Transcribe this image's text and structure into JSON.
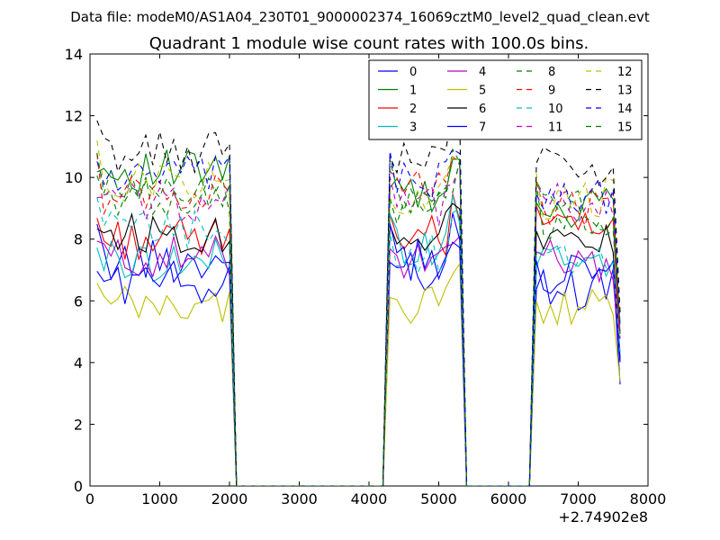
{
  "chart_data": {
    "type": "line",
    "suptitle": "Data file: modeM0/AS1A04_230T01_9000002374_16069cztM0_level2_quad_clean.evt",
    "title": "Quadrant 1 module wise count rates with 100.0s bins.",
    "xlabel": "",
    "ylabel": "",
    "xlim": [
      0,
      8000
    ],
    "ylim": [
      0,
      14
    ],
    "x_ticks": [
      "0",
      "1000",
      "2000",
      "3000",
      "4000",
      "5000",
      "6000",
      "7000",
      "8000"
    ],
    "y_ticks": [
      "0",
      "2",
      "4",
      "6",
      "8",
      "10",
      "12",
      "14"
    ],
    "x_offset_label": "+2.74902e8",
    "legend_position": "top-right",
    "segments": [
      {
        "start": 100,
        "n": 20
      },
      {
        "start": 4300,
        "n": 11
      },
      {
        "start": 6400,
        "n": 13
      }
    ],
    "gap_x": [
      2200,
      4200,
      5500,
      6200,
      7600
    ],
    "series": [
      {
        "name": "0",
        "color": "#0000ff",
        "dash": false,
        "levels": [
          7.3,
          7.0,
          6.4
        ]
      },
      {
        "name": "1",
        "color": "#008000",
        "dash": false,
        "levels": [
          10.2,
          9.4,
          9.0
        ]
      },
      {
        "name": "2",
        "color": "#ff0000",
        "dash": false,
        "levels": [
          8.0,
          8.1,
          8.2
        ]
      },
      {
        "name": "3",
        "color": "#00bfbf",
        "dash": false,
        "levels": [
          7.3,
          7.8,
          7.2
        ]
      },
      {
        "name": "4",
        "color": "#bf00bf",
        "dash": false,
        "levels": [
          7.4,
          7.3,
          7.3
        ]
      },
      {
        "name": "5",
        "color": "#bfbf00",
        "dash": false,
        "levels": [
          5.8,
          5.9,
          5.7
        ]
      },
      {
        "name": "6",
        "color": "#000000",
        "dash": false,
        "levels": [
          8.2,
          8.2,
          7.9
        ]
      },
      {
        "name": "7",
        "color": "#0000ff",
        "dash": false,
        "levels": [
          6.6,
          7.3,
          6.9
        ]
      },
      {
        "name": "8",
        "color": "#008000",
        "dash": true,
        "levels": [
          9.4,
          9.3,
          8.6
        ]
      },
      {
        "name": "9",
        "color": "#ff0000",
        "dash": true,
        "levels": [
          9.5,
          9.6,
          9.0
        ]
      },
      {
        "name": "10",
        "color": "#00bfbf",
        "dash": true,
        "levels": [
          8.3,
          7.6,
          7.3
        ]
      },
      {
        "name": "11",
        "color": "#bf00bf",
        "dash": true,
        "levels": [
          9.2,
          9.1,
          9.1
        ]
      },
      {
        "name": "12",
        "color": "#bfbf00",
        "dash": true,
        "levels": [
          9.9,
          9.4,
          9.3
        ]
      },
      {
        "name": "13",
        "color": "#000000",
        "dash": true,
        "levels": [
          10.8,
          10.6,
          10.4
        ]
      },
      {
        "name": "14",
        "color": "#0000ff",
        "dash": true,
        "levels": [
          10.0,
          9.9,
          9.5
        ]
      },
      {
        "name": "15",
        "color": "#008000",
        "dash": true,
        "levels": [
          9.6,
          9.0,
          8.9
        ]
      }
    ]
  }
}
